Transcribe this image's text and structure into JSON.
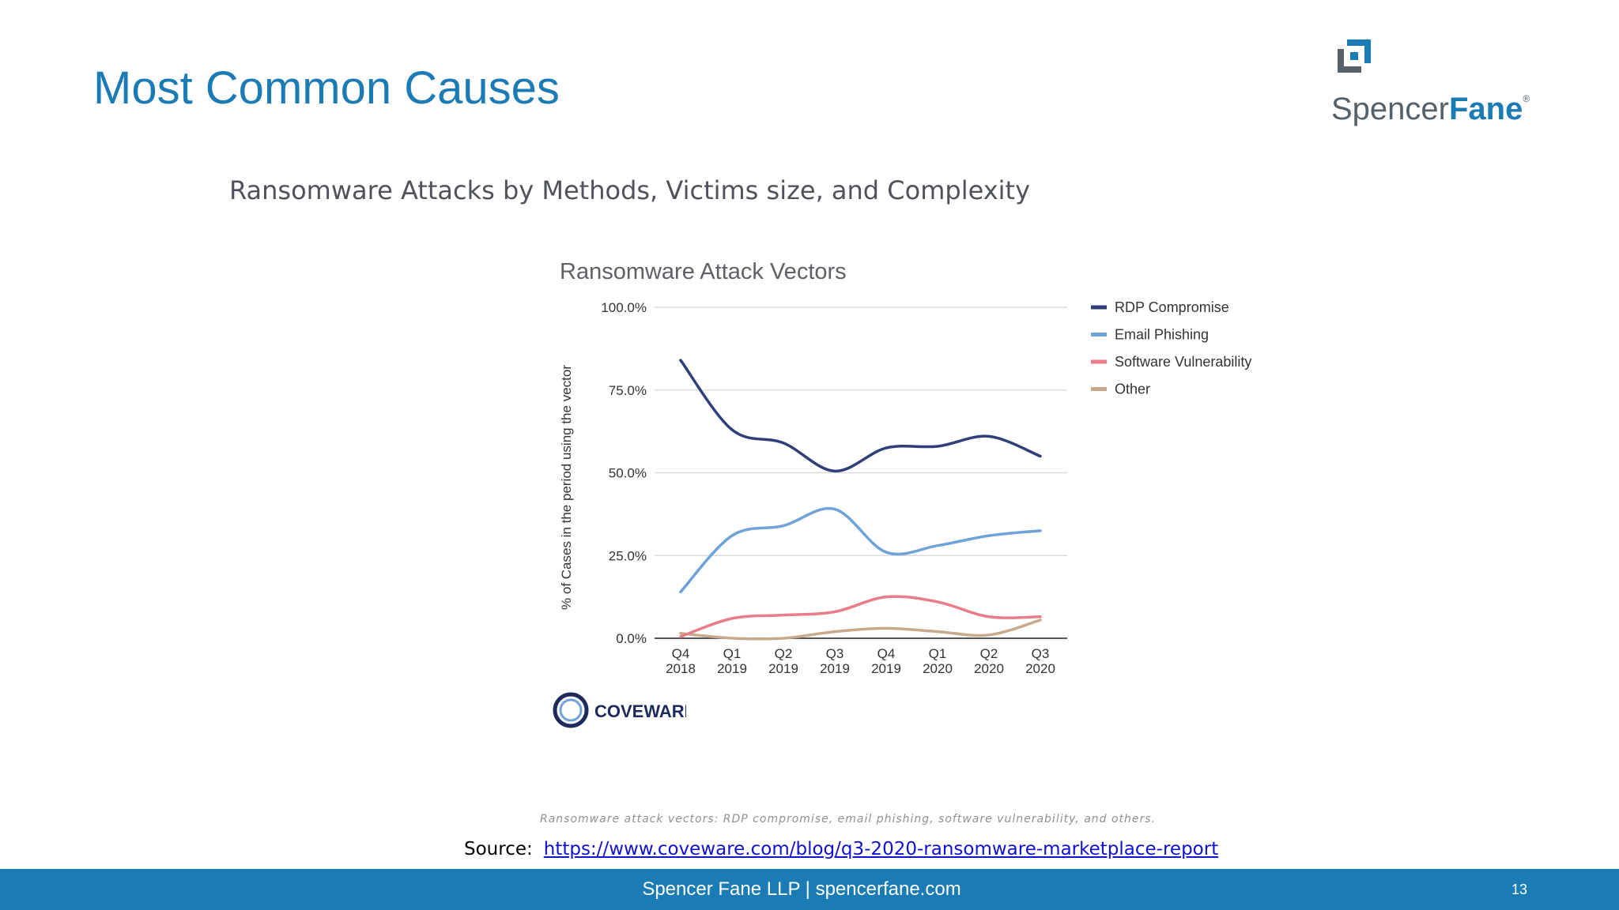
{
  "slide": {
    "title": "Most Common Causes",
    "figure_heading": "Ransomware Attacks by Methods, Victims size, and Complexity",
    "caption": "Ransomware attack vectors: RDP compromise, email phishing, software vulnerability, and others.",
    "source_label": "Source:",
    "source_link": "https://www.coveware.com/blog/q3-2020-ransomware-marketplace-report"
  },
  "logo": {
    "text_light": "Spencer",
    "text_bold": "Fane",
    "registered": "®",
    "icon": "spencer-fane-logo-icon"
  },
  "footer": {
    "text": "Spencer Fane LLP | spencerfane.com",
    "page_number": "13"
  },
  "coveware_logo": {
    "text": "COVEWARE",
    "icon": "coveware-ring-icon"
  },
  "colors": {
    "brand_blue": "#1a7bb5",
    "footer_bar": "#1a7bb5",
    "rdp": "#2f3f7a",
    "email": "#6ea3d8",
    "software": "#e87c8a",
    "other": "#c9a98c"
  },
  "chart_data": {
    "type": "line",
    "title": "Ransomware Attack Vectors",
    "xlabel": "",
    "ylabel": "% of Cases in the period using the vector",
    "categories": [
      [
        "Q4",
        "2018"
      ],
      [
        "Q1",
        "2019"
      ],
      [
        "Q2",
        "2019"
      ],
      [
        "Q3",
        "2019"
      ],
      [
        "Q4",
        "2019"
      ],
      [
        "Q1",
        "2020"
      ],
      [
        "Q2",
        "2020"
      ],
      [
        "Q3",
        "2020"
      ]
    ],
    "ylim": [
      0,
      100
    ],
    "yticks": [
      0,
      25,
      50,
      75,
      100
    ],
    "ytick_labels": [
      "0.0%",
      "25.0%",
      "50.0%",
      "75.0%",
      "100.0%"
    ],
    "grid": "horizontal",
    "legend_position": "right",
    "series": [
      {
        "name": "RDP Compromise",
        "color": "#2f3f7a",
        "values": [
          84,
          63,
          59,
          50.5,
          57.5,
          58,
          61,
          55
        ]
      },
      {
        "name": "Email Phishing",
        "color": "#6ea3d8",
        "values": [
          14,
          31,
          34,
          39,
          26,
          28,
          31,
          32.5
        ]
      },
      {
        "name": "Software Vulnerability",
        "color": "#e87c8a",
        "values": [
          0.5,
          6,
          7,
          8,
          12.5,
          11,
          6.5,
          6.5
        ]
      },
      {
        "name": "Other",
        "color": "#c9a98c",
        "values": [
          1.5,
          0,
          0,
          2,
          3,
          2,
          1,
          5.5
        ]
      }
    ]
  }
}
